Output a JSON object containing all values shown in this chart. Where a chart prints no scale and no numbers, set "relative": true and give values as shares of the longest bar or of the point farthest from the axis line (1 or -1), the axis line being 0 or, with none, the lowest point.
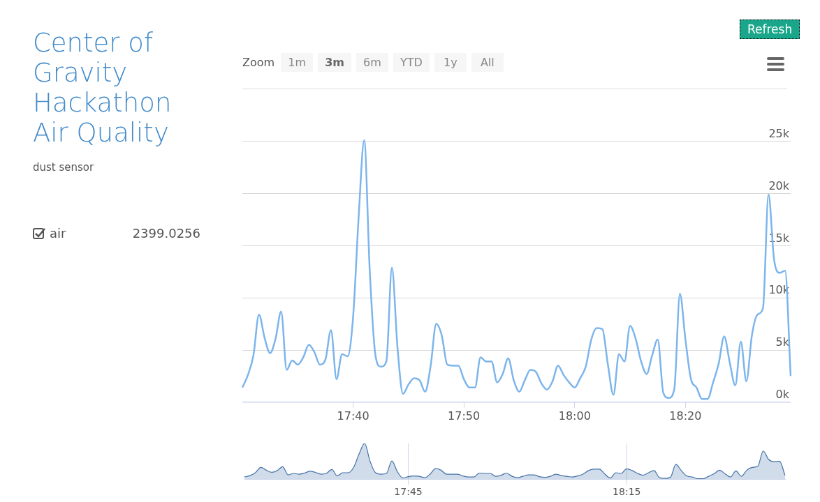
{
  "chart_data": [
    {
      "type": "line",
      "title": "Center of Gravity Hackathon Air Quality",
      "categories": [
        null,
        null,
        null,
        null,
        null,
        null,
        null,
        null,
        null,
        null,
        null,
        null,
        null,
        null,
        null,
        null,
        null,
        null,
        null,
        null,
        "17:40",
        null,
        null,
        null,
        null,
        null,
        null,
        null,
        null,
        null,
        null,
        null,
        null,
        null,
        null,
        null,
        null,
        null,
        null,
        null,
        "17:50",
        null,
        null,
        null,
        null,
        null,
        null,
        null,
        null,
        null,
        null,
        null,
        null,
        null,
        null,
        null,
        null,
        null,
        null,
        null,
        "18:00",
        null,
        null,
        null,
        null,
        null,
        null,
        null,
        null,
        null,
        null,
        null,
        null,
        null,
        null,
        null,
        null,
        null,
        null,
        null,
        "18:20",
        null,
        null,
        null,
        null,
        null,
        null,
        null,
        null,
        null,
        null,
        null,
        null,
        null,
        null,
        null,
        null,
        null,
        null,
        null
      ],
      "series": [
        {
          "name": "air",
          "color": "#7cb5ec",
          "values": [
            1400,
            2600,
            4500,
            8400,
            6200,
            4700,
            6100,
            8700,
            3100,
            4000,
            3600,
            4300,
            5500,
            4800,
            3600,
            4100,
            6900,
            2200,
            4600,
            4400,
            8200,
            17800,
            25100,
            12600,
            4600,
            3400,
            3900,
            12900,
            5300,
            800,
            1700,
            2300,
            2100,
            1000,
            3500,
            7500,
            6400,
            3600,
            3500,
            3500,
            2200,
            1400,
            1400,
            4300,
            3900,
            3900,
            1900,
            2700,
            4200,
            2100,
            1000,
            2100,
            3100,
            2900,
            1800,
            1200,
            2000,
            3500,
            2600,
            1900,
            1400,
            2300,
            3400,
            6000,
            7100,
            7000,
            3600,
            700,
            4600,
            3900,
            7300,
            6100,
            3900,
            2700,
            4500,
            6000,
            900,
            400,
            1300,
            10400,
            6000,
            2200,
            1400,
            300,
            300,
            1900,
            3700,
            6300,
            3800,
            1600,
            5800,
            2000,
            6400,
            8400,
            9000,
            19900,
            13700,
            12400,
            12600,
            2500
          ]
        }
      ],
      "ylim": [
        0,
        30000
      ],
      "yticks": [
        {
          "value": 0,
          "label": "0k"
        },
        {
          "value": 5000,
          "label": "5k"
        },
        {
          "value": 10000,
          "label": "10k"
        },
        {
          "value": 15000,
          "label": "15k"
        },
        {
          "value": 20000,
          "label": "20k"
        },
        {
          "value": 25000,
          "label": "25k"
        }
      ],
      "grid": "y",
      "legend": "left",
      "marker": "none",
      "annotations": [
        "2399.0256",
        "Zoom",
        "1m",
        "3m",
        "6m",
        "YTD",
        "1y",
        "All",
        "Refresh",
        "dust sensor"
      ]
    },
    {
      "type": "area",
      "relative": true,
      "tick_labels": "x",
      "marker": "none",
      "categories": [
        null,
        null,
        null,
        null,
        null,
        null,
        null,
        null,
        null,
        null,
        null,
        null,
        null,
        null,
        null,
        null,
        null,
        null,
        null,
        null,
        null,
        null,
        null,
        null,
        null,
        null,
        null,
        null,
        null,
        null,
        "17:45",
        null,
        null,
        null,
        null,
        null,
        null,
        null,
        null,
        null,
        null,
        null,
        null,
        null,
        null,
        null,
        null,
        null,
        null,
        null,
        null,
        null,
        null,
        null,
        null,
        null,
        null,
        null,
        null,
        null,
        null,
        null,
        null,
        null,
        null,
        null,
        null,
        null,
        null,
        null,
        "18:15",
        null,
        null,
        null,
        null,
        null,
        null,
        null,
        null,
        null,
        null,
        null,
        null,
        null,
        null,
        null,
        null,
        null,
        null,
        null,
        null,
        null,
        null,
        null,
        null,
        null,
        null,
        null,
        null,
        null
      ],
      "series": [
        {
          "color": "#4572a7",
          "values": [
            0.06,
            0.1,
            0.18,
            0.33,
            0.25,
            0.19,
            0.24,
            0.35,
            0.12,
            0.16,
            0.14,
            0.17,
            0.22,
            0.19,
            0.14,
            0.16,
            0.27,
            0.09,
            0.18,
            0.18,
            0.33,
            0.71,
            1,
            0.5,
            0.18,
            0.14,
            0.16,
            0.51,
            0.21,
            0.03,
            0.07,
            0.09,
            0.08,
            0.04,
            0.14,
            0.3,
            0.25,
            0.14,
            0.14,
            0.14,
            0.09,
            0.06,
            0.06,
            0.17,
            0.16,
            0.16,
            0.08,
            0.11,
            0.17,
            0.08,
            0.04,
            0.08,
            0.12,
            0.12,
            0.07,
            0.05,
            0.08,
            0.14,
            0.1,
            0.08,
            0.06,
            0.09,
            0.14,
            0.24,
            0.28,
            0.28,
            0.14,
            0.03,
            0.18,
            0.16,
            0.29,
            0.24,
            0.16,
            0.11,
            0.18,
            0.24,
            0.04,
            0.02,
            0.05,
            0.41,
            0.24,
            0.09,
            0.06,
            0.01,
            0.01,
            0.08,
            0.15,
            0.25,
            0.15,
            0.06,
            0.23,
            0.08,
            0.25,
            0.33,
            0.36,
            0.79,
            0.55,
            0.49,
            0.5,
            0.1
          ]
        }
      ]
    }
  ]
}
